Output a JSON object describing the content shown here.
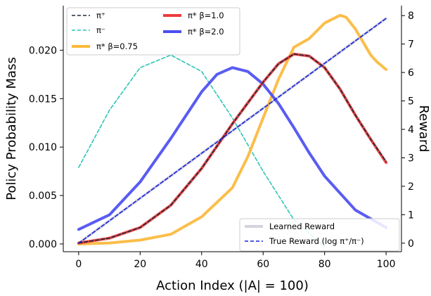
{
  "chart_data": {
    "type": "line",
    "title": "",
    "xlabel": "Action Index (|A| = 100)",
    "ylabel": "Policy Probability Mass",
    "y2label": "Reward",
    "xlim": [
      -5,
      105
    ],
    "ylim": [
      -0.0008,
      0.0246
    ],
    "y2lim": [
      -0.3,
      8.35
    ],
    "xticks": [
      0,
      20,
      40,
      60,
      80,
      100
    ],
    "yticks": [
      0.0,
      0.005,
      0.01,
      0.015,
      0.02
    ],
    "yticklabels": [
      "0.000",
      "0.005",
      "0.010",
      "0.015",
      "0.020"
    ],
    "y2ticks": [
      0,
      1,
      2,
      3,
      4,
      5,
      6,
      7,
      8
    ],
    "grid": false,
    "legends": [
      {
        "placement": "top-left",
        "entries": [
          "π⁺",
          "π⁻",
          "π* β=0.75",
          "π* β=1.0",
          "π* β=2.0"
        ]
      },
      {
        "placement": "bottom-right",
        "entries": [
          "Learned Reward",
          "True Reward (log π⁺/π⁻)"
        ]
      }
    ],
    "series": [
      {
        "name": "π⁺",
        "axis": "left",
        "style": "dashed",
        "color": "#1b2a3a",
        "x": [
          0,
          10,
          20,
          30,
          40,
          50,
          60,
          65,
          70,
          75,
          80,
          85,
          90,
          95,
          100
        ],
        "y": [
          0.0001,
          0.0006,
          0.0017,
          0.004,
          0.0078,
          0.0124,
          0.0167,
          0.0186,
          0.0196,
          0.0194,
          0.0182,
          0.016,
          0.0133,
          0.0108,
          0.0085
        ]
      },
      {
        "name": "π⁻",
        "axis": "left",
        "style": "dashed",
        "color": "#2ec4b6",
        "x": [
          0,
          10,
          20,
          30,
          40,
          50,
          60,
          70,
          80
        ],
        "y": [
          0.0079,
          0.0138,
          0.0182,
          0.0195,
          0.0178,
          0.013,
          0.0075,
          0.0025,
          -0.0003
        ]
      },
      {
        "name": "π* β=0.75",
        "axis": "left",
        "style": "solid",
        "color": "#fbb93b",
        "x": [
          0,
          10,
          20,
          30,
          40,
          50,
          55,
          60,
          65,
          70,
          75,
          80,
          85,
          87,
          90,
          95,
          97,
          100
        ],
        "y": [
          0.0,
          0.0001,
          0.0004,
          0.001,
          0.0028,
          0.0058,
          0.009,
          0.013,
          0.017,
          0.0203,
          0.0212,
          0.0228,
          0.0236,
          0.0234,
          0.0222,
          0.0195,
          0.0188,
          0.018
        ]
      },
      {
        "name": "π* β=1.0",
        "axis": "left",
        "style": "solid",
        "color": "#ee3b3b",
        "x": [
          0,
          10,
          20,
          30,
          40,
          50,
          60,
          65,
          70,
          75,
          80,
          85,
          90,
          95,
          100
        ],
        "y": [
          0.0001,
          0.0006,
          0.0017,
          0.004,
          0.0078,
          0.0124,
          0.0167,
          0.0186,
          0.0196,
          0.0194,
          0.0182,
          0.016,
          0.0133,
          0.0108,
          0.0084
        ]
      },
      {
        "name": "π* β=2.0",
        "axis": "left",
        "style": "solid",
        "color": "#4b4ef0",
        "x": [
          0,
          10,
          20,
          30,
          40,
          45,
          50,
          55,
          60,
          65,
          70,
          75,
          80,
          90,
          100
        ],
        "y": [
          0.0015,
          0.003,
          0.0064,
          0.0109,
          0.0157,
          0.0175,
          0.0182,
          0.0178,
          0.0165,
          0.0145,
          0.012,
          0.0094,
          0.007,
          0.0035,
          0.0017
        ]
      },
      {
        "name": "Learned Reward",
        "axis": "right",
        "style": "solid",
        "color": "#d4d4e0",
        "x": [
          0,
          100
        ],
        "y": [
          0,
          7.9
        ]
      },
      {
        "name": "True Reward (log π⁺/π⁻)",
        "axis": "right",
        "style": "dashed",
        "color": "#1420d8",
        "x": [
          0,
          100
        ],
        "y": [
          0,
          7.9
        ]
      }
    ]
  }
}
